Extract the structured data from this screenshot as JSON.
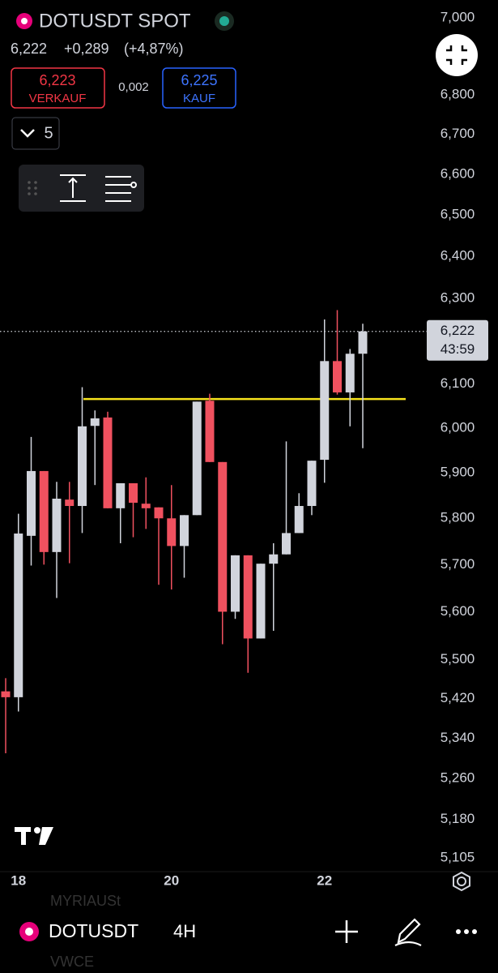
{
  "header": {
    "symbol": "DOTUSDT SPOT",
    "last": "6,222",
    "change": "+0,289",
    "change_pct": "(+4,87%)"
  },
  "order": {
    "sell_price": "6,223",
    "sell_label": "VERKAUF",
    "spread": "0,002",
    "buy_price": "6,225",
    "buy_label": "KAUF"
  },
  "quantity": "5",
  "chart_data": {
    "type": "candlestick",
    "categories": [
      null,
      "18",
      null,
      null,
      null,
      null,
      null,
      null,
      null,
      null,
      null,
      null,
      null,
      "20",
      null,
      null,
      null,
      null,
      null,
      null,
      null,
      null,
      null,
      null,
      null,
      "22",
      null,
      null,
      null
    ],
    "open": [
      5.435,
      5.423,
      5.762,
      5.904,
      5.727,
      5.841,
      5.827,
      6.005,
      6.024,
      5.822,
      5.877,
      5.832,
      5.824,
      5.8,
      5.74,
      5.807,
      6.062,
      5.924,
      5.6,
      5.72,
      5.544,
      5.702,
      5.722,
      5.768,
      5.827,
      5.929,
      6.153,
      6.081,
      6.17
    ],
    "high": [
      5.462,
      5.81,
      5.98,
      5.904,
      5.88,
      5.88,
      6.093,
      6.04,
      6.037,
      5.877,
      5.877,
      5.89,
      5.824,
      5.873,
      5.807,
      6.06,
      6.078,
      5.924,
      5.72,
      5.72,
      5.702,
      5.746,
      5.97,
      5.855,
      5.927,
      6.25,
      6.272,
      6.181,
      6.24
    ],
    "low": [
      5.31,
      5.394,
      5.698,
      5.7,
      5.629,
      5.703,
      5.768,
      5.873,
      5.822,
      5.746,
      5.759,
      5.777,
      5.657,
      5.647,
      5.672,
      5.807,
      5.924,
      5.532,
      5.585,
      5.473,
      5.544,
      5.56,
      5.722,
      5.768,
      5.807,
      5.878,
      6.076,
      6.004,
      5.955
    ],
    "close": [
      5.423,
      5.767,
      5.904,
      5.727,
      5.843,
      5.827,
      6.004,
      6.022,
      5.822,
      5.877,
      5.834,
      5.822,
      5.8,
      5.74,
      5.807,
      6.06,
      5.924,
      5.6,
      5.72,
      5.544,
      5.702,
      5.722,
      5.768,
      5.827,
      5.927,
      6.153,
      6.081,
      6.17,
      6.222
    ],
    "up_color": "#d1d4dc",
    "down_color": "#f0515f",
    "log_scale": true,
    "ylim": [
      5.079,
      7.047
    ],
    "yticks": [
      {
        "value": 7,
        "label": "7,000"
      },
      {
        "value": 6.8,
        "label": "6,800"
      },
      {
        "value": 6.7,
        "label": "6,700"
      },
      {
        "value": 6.6,
        "label": "6,600"
      },
      {
        "value": 6.5,
        "label": "6,500"
      },
      {
        "value": 6.4,
        "label": "6,400"
      },
      {
        "value": 6.3,
        "label": "6,300"
      },
      {
        "value": 6.1,
        "label": "6,100"
      },
      {
        "value": 6,
        "label": "6,000"
      },
      {
        "value": 5.9,
        "label": "5,900"
      },
      {
        "value": 5.8,
        "label": "5,800"
      },
      {
        "value": 5.7,
        "label": "5,700"
      },
      {
        "value": 5.6,
        "label": "5,600"
      },
      {
        "value": 5.5,
        "label": "5,500"
      },
      {
        "value": 5.42,
        "label": "5,420"
      },
      {
        "value": 5.34,
        "label": "5,340"
      },
      {
        "value": 5.26,
        "label": "5,260"
      },
      {
        "value": 5.18,
        "label": "5,180"
      },
      {
        "value": 5.105,
        "label": "5,105"
      }
    ],
    "current_price": {
      "value": 6.222,
      "label": "6,222"
    },
    "countdown": "43:59",
    "level_line": {
      "value": 6.066,
      "color": "#f5e21c"
    }
  },
  "bottom": {
    "symbol": "DOTUSDT",
    "interval": "4H",
    "ghost": [
      "MYRIAUSt",
      "VWCE"
    ]
  }
}
